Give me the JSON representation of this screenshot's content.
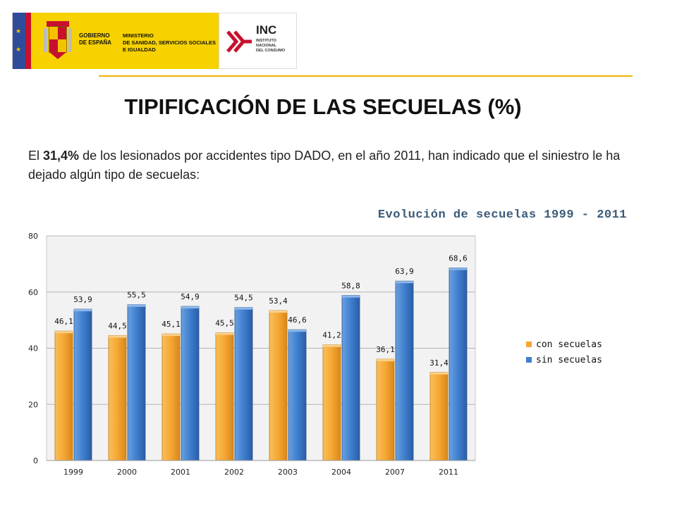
{
  "header": {
    "gob_line1": "GOBIERNO",
    "gob_line2": "DE ESPAÑA",
    "min_line1": "MINISTERIO",
    "min_line2": "DE SANIDAD, SERVICIOS SOCIALES",
    "min_line3": "E IGUALDAD",
    "inc_name": "INC",
    "inc_sub1": "INSTITUTO",
    "inc_sub2": "NACIONAL",
    "inc_sub3": "DEL CONSUMO"
  },
  "page_title": "TIPIFICACIÓN DE LAS SECUELAS (%)",
  "intro": {
    "before": "El ",
    "highlight": "31,4%",
    "after": " de los lesionados por accidentes tipo DADO, en el año 2011, han indicado que el siniestro le ha dejado algún tipo de secuelas:"
  },
  "chart_data": {
    "type": "bar",
    "title": "Evolución de secuelas 1999 - 2011",
    "categories": [
      "1999",
      "2000",
      "2001",
      "2002",
      "2003",
      "2004",
      "2007",
      "2011"
    ],
    "series": [
      {
        "name": "con secuelas",
        "values": [
          46.1,
          44.5,
          45.1,
          45.5,
          53.4,
          41.2,
          36.1,
          31.4
        ],
        "labels": [
          "46,1",
          "44,5",
          "45,1",
          "45,5",
          "53,4",
          "41,2",
          "36,1",
          "31,4"
        ]
      },
      {
        "name": "sin secuelas",
        "values": [
          53.9,
          55.5,
          54.9,
          54.5,
          46.6,
          58.8,
          63.9,
          68.6
        ],
        "labels": [
          "53,9",
          "55,5",
          "54,9",
          "54,5",
          "46,6",
          "58,8",
          "63,9",
          "68,6"
        ]
      }
    ],
    "ylim": [
      0,
      80
    ],
    "yticks": [
      0,
      20,
      40,
      60,
      80
    ],
    "grid": true,
    "legend": "right",
    "colors": {
      "con secuelas": "#f5a733",
      "sin secuelas": "#3f7fce"
    }
  }
}
